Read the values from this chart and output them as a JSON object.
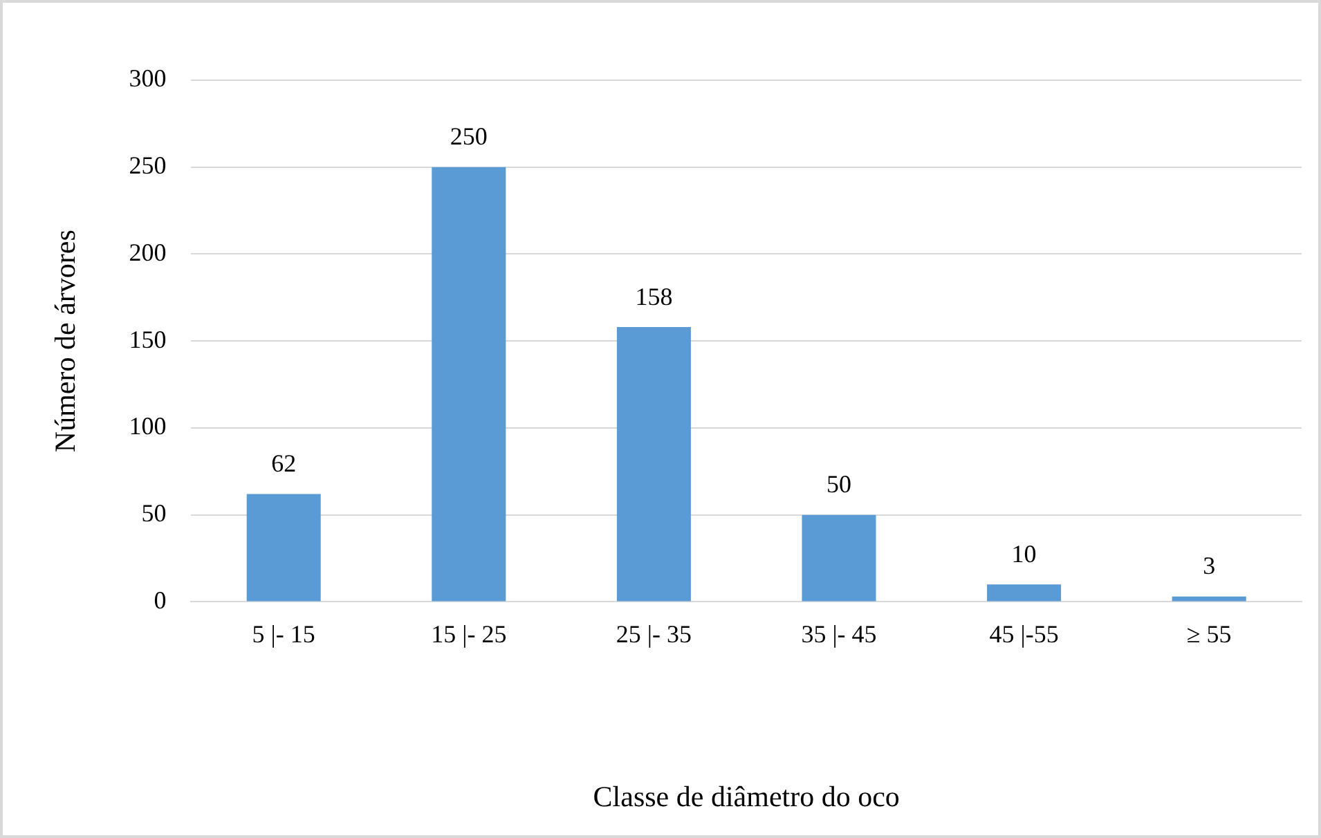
{
  "chart_data": {
    "type": "bar",
    "xlabel": "Classe de diâmetro do oco",
    "ylabel": "Número de árvores",
    "categories": [
      "5 |- 15",
      "15 |- 25",
      "25 |- 35",
      "35 |- 45",
      "45 |-55",
      "≥ 55"
    ],
    "values": [
      62,
      250,
      158,
      50,
      10,
      3
    ],
    "color": "#5b9bd5",
    "ylim": [
      0,
      300
    ],
    "yticks": [
      0,
      50,
      100,
      150,
      200,
      250,
      300
    ],
    "grid": "y",
    "data_labels": true
  }
}
